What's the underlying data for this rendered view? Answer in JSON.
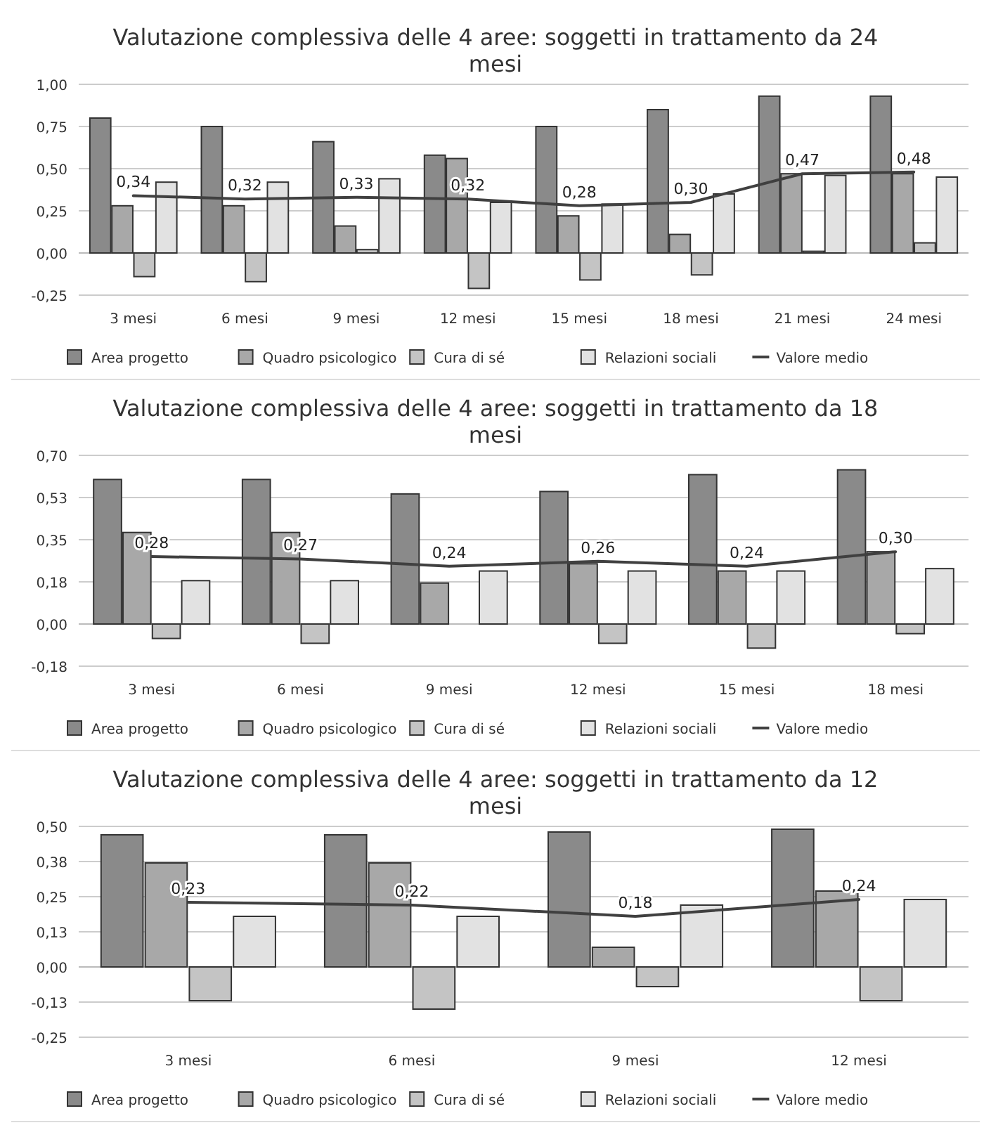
{
  "chart_data": [
    {
      "type": "bar",
      "title": "Valutazione complessiva delle 4 aree: soggetti in trattamento da 24 mesi",
      "categories": [
        "3 mesi",
        "6 mesi",
        "9 mesi",
        "12 mesi",
        "15 mesi",
        "18 mesi",
        "21 mesi",
        "24 mesi"
      ],
      "series": [
        {
          "name": "Area progetto",
          "color": "#8a8a8a",
          "values": [
            0.8,
            0.75,
            0.66,
            0.58,
            0.75,
            0.85,
            0.93,
            0.93
          ]
        },
        {
          "name": "Quadro psicologico",
          "color": "#a8a8a8",
          "values": [
            0.28,
            0.28,
            0.16,
            0.56,
            0.22,
            0.11,
            0.47,
            0.47
          ]
        },
        {
          "name": "Cura di sé",
          "color": "#c4c4c4",
          "values": [
            -0.14,
            -0.17,
            0.02,
            -0.21,
            -0.16,
            -0.13,
            0.01,
            0.06
          ]
        },
        {
          "name": "Relazioni sociali",
          "color": "#e2e2e2",
          "values": [
            0.42,
            0.42,
            0.44,
            0.3,
            0.29,
            0.35,
            0.46,
            0.45
          ]
        },
        {
          "name": "Valore medio",
          "type": "line",
          "color": "#404040",
          "values": [
            0.34,
            0.32,
            0.33,
            0.32,
            0.28,
            0.3,
            0.47,
            0.48
          ],
          "value_labels": [
            "0,34",
            "0,32",
            "0,33",
            "0,32",
            "0,28",
            "0,30",
            "0,47",
            "0,48"
          ]
        }
      ],
      "ylim": [
        -0.25,
        1.0
      ],
      "yticks": [
        {
          "value": -0.25,
          "label": "-0,25"
        },
        {
          "value": 0,
          "label": "0,00"
        },
        {
          "value": 0.25,
          "label": "0,25"
        },
        {
          "value": 0.5,
          "label": "0,50"
        },
        {
          "value": 0.75,
          "label": "0,75"
        },
        {
          "value": 1.0,
          "label": "1,00"
        }
      ],
      "grid": "y",
      "legend": "bottom"
    },
    {
      "type": "bar",
      "title": "Valutazione complessiva delle 4 aree: soggetti in trattamento da 18 mesi",
      "categories": [
        "3 mesi",
        "6 mesi",
        "9 mesi",
        "12 mesi",
        "15 mesi",
        "18 mesi"
      ],
      "series": [
        {
          "name": "Area progetto",
          "color": "#8a8a8a",
          "values": [
            0.6,
            0.6,
            0.54,
            0.55,
            0.62,
            0.64
          ]
        },
        {
          "name": "Quadro psicologico",
          "color": "#a8a8a8",
          "values": [
            0.38,
            0.38,
            0.17,
            0.25,
            0.22,
            0.3
          ]
        },
        {
          "name": "Cura di sé",
          "color": "#c4c4c4",
          "values": [
            -0.06,
            -0.08,
            0.0,
            -0.08,
            -0.1,
            -0.04
          ]
        },
        {
          "name": "Relazioni sociali",
          "color": "#e2e2e2",
          "values": [
            0.18,
            0.18,
            0.22,
            0.22,
            0.22,
            0.23
          ]
        },
        {
          "name": "Valore medio",
          "type": "line",
          "color": "#404040",
          "values": [
            0.28,
            0.27,
            0.24,
            0.26,
            0.24,
            0.3
          ],
          "value_labels": [
            "0,28",
            "0,27",
            "0,24",
            "0,26",
            "0,24",
            "0,30"
          ]
        }
      ],
      "ylim": [
        -0.175,
        0.7
      ],
      "yticks": [
        {
          "value": -0.175,
          "label": "-0,18"
        },
        {
          "value": 0,
          "label": "0,00"
        },
        {
          "value": 0.175,
          "label": "0,18"
        },
        {
          "value": 0.35,
          "label": "0,35"
        },
        {
          "value": 0.525,
          "label": "0,53"
        },
        {
          "value": 0.7,
          "label": "0,70"
        }
      ],
      "grid": "y",
      "legend": "bottom"
    },
    {
      "type": "bar",
      "title": "Valutazione complessiva delle 4 aree: soggetti in trattamento da 12 mesi",
      "categories": [
        "3 mesi",
        "6 mesi",
        "9 mesi",
        "12 mesi"
      ],
      "series": [
        {
          "name": "Area progetto",
          "color": "#8a8a8a",
          "values": [
            0.47,
            0.47,
            0.48,
            0.49
          ]
        },
        {
          "name": "Quadro psicologico",
          "color": "#a8a8a8",
          "values": [
            0.37,
            0.37,
            0.07,
            0.27
          ]
        },
        {
          "name": "Cura di sé",
          "color": "#c4c4c4",
          "values": [
            -0.12,
            -0.15,
            -0.07,
            -0.12
          ]
        },
        {
          "name": "Relazioni sociali",
          "color": "#e2e2e2",
          "values": [
            0.18,
            0.18,
            0.22,
            0.24
          ]
        },
        {
          "name": "Valore medio",
          "type": "line",
          "color": "#404040",
          "values": [
            0.23,
            0.22,
            0.18,
            0.24
          ],
          "value_labels": [
            "0,23",
            "0,22",
            "0,18",
            "0,24"
          ]
        }
      ],
      "ylim": [
        -0.25,
        0.5
      ],
      "yticks": [
        {
          "value": -0.25,
          "label": "-0,25"
        },
        {
          "value": -0.125,
          "label": "-0,13"
        },
        {
          "value": 0,
          "label": "0,00"
        },
        {
          "value": 0.125,
          "label": "0,13"
        },
        {
          "value": 0.25,
          "label": "0,25"
        },
        {
          "value": 0.375,
          "label": "0,38"
        },
        {
          "value": 0.5,
          "label": "0,50"
        }
      ],
      "grid": "y",
      "legend": "bottom"
    }
  ]
}
